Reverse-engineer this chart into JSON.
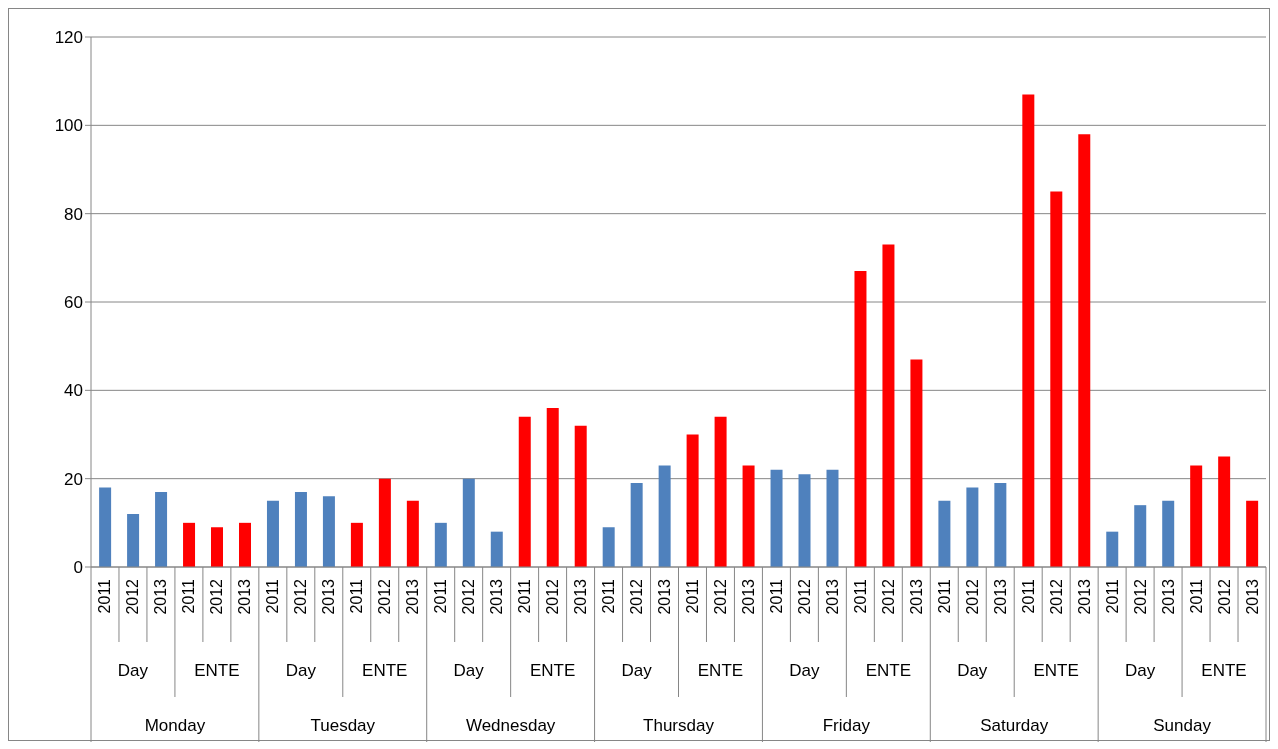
{
  "chart_data": {
    "type": "bar",
    "categories": [
      "2011",
      "2012",
      "2013",
      "2011",
      "2012",
      "2013",
      "2011",
      "2012",
      "2013",
      "2011",
      "2012",
      "2013",
      "2011",
      "2012",
      "2013",
      "2011",
      "2012",
      "2013",
      "2011",
      "2012",
      "2013",
      "2011",
      "2012",
      "2013",
      "2011",
      "2012",
      "2013",
      "2011",
      "2012",
      "2013",
      "2011",
      "2012",
      "2013",
      "2011",
      "2012",
      "2013",
      "2011",
      "2012",
      "2013",
      "2011",
      "2012",
      "2013"
    ],
    "values": [
      18,
      12,
      17,
      10,
      9,
      10,
      15,
      17,
      16,
      10,
      20,
      15,
      10,
      20,
      8,
      34,
      36,
      32,
      9,
      19,
      23,
      30,
      34,
      23,
      22,
      21,
      22,
      67,
      73,
      47,
      15,
      18,
      19,
      107,
      85,
      98,
      8,
      14,
      15,
      23,
      25,
      15
    ],
    "colors": [
      "#4f81bd",
      "#4f81bd",
      "#4f81bd",
      "#ff0000",
      "#ff0000",
      "#ff0000",
      "#4f81bd",
      "#4f81bd",
      "#4f81bd",
      "#ff0000",
      "#ff0000",
      "#ff0000",
      "#4f81bd",
      "#4f81bd",
      "#4f81bd",
      "#ff0000",
      "#ff0000",
      "#ff0000",
      "#4f81bd",
      "#4f81bd",
      "#4f81bd",
      "#ff0000",
      "#ff0000",
      "#ff0000",
      "#4f81bd",
      "#4f81bd",
      "#4f81bd",
      "#ff0000",
      "#ff0000",
      "#ff0000",
      "#4f81bd",
      "#4f81bd",
      "#4f81bd",
      "#ff0000",
      "#ff0000",
      "#ff0000",
      "#4f81bd",
      "#4f81bd",
      "#4f81bd",
      "#ff0000",
      "#ff0000",
      "#ff0000"
    ],
    "annotations": [
      "Day",
      "ENTE",
      "Day",
      "ENTE",
      "Day",
      "ENTE",
      "Day",
      "ENTE",
      "Day",
      "ENTE",
      "Day",
      "ENTE",
      "Day",
      "ENTE",
      "Monday",
      "Tuesday",
      "Wednesday",
      "Thursday",
      "Friday",
      "Saturday",
      "Sunday"
    ],
    "ylim": [
      0,
      120
    ],
    "yticks": [
      0,
      20,
      40,
      60,
      80,
      100,
      120
    ],
    "grid": "y"
  }
}
